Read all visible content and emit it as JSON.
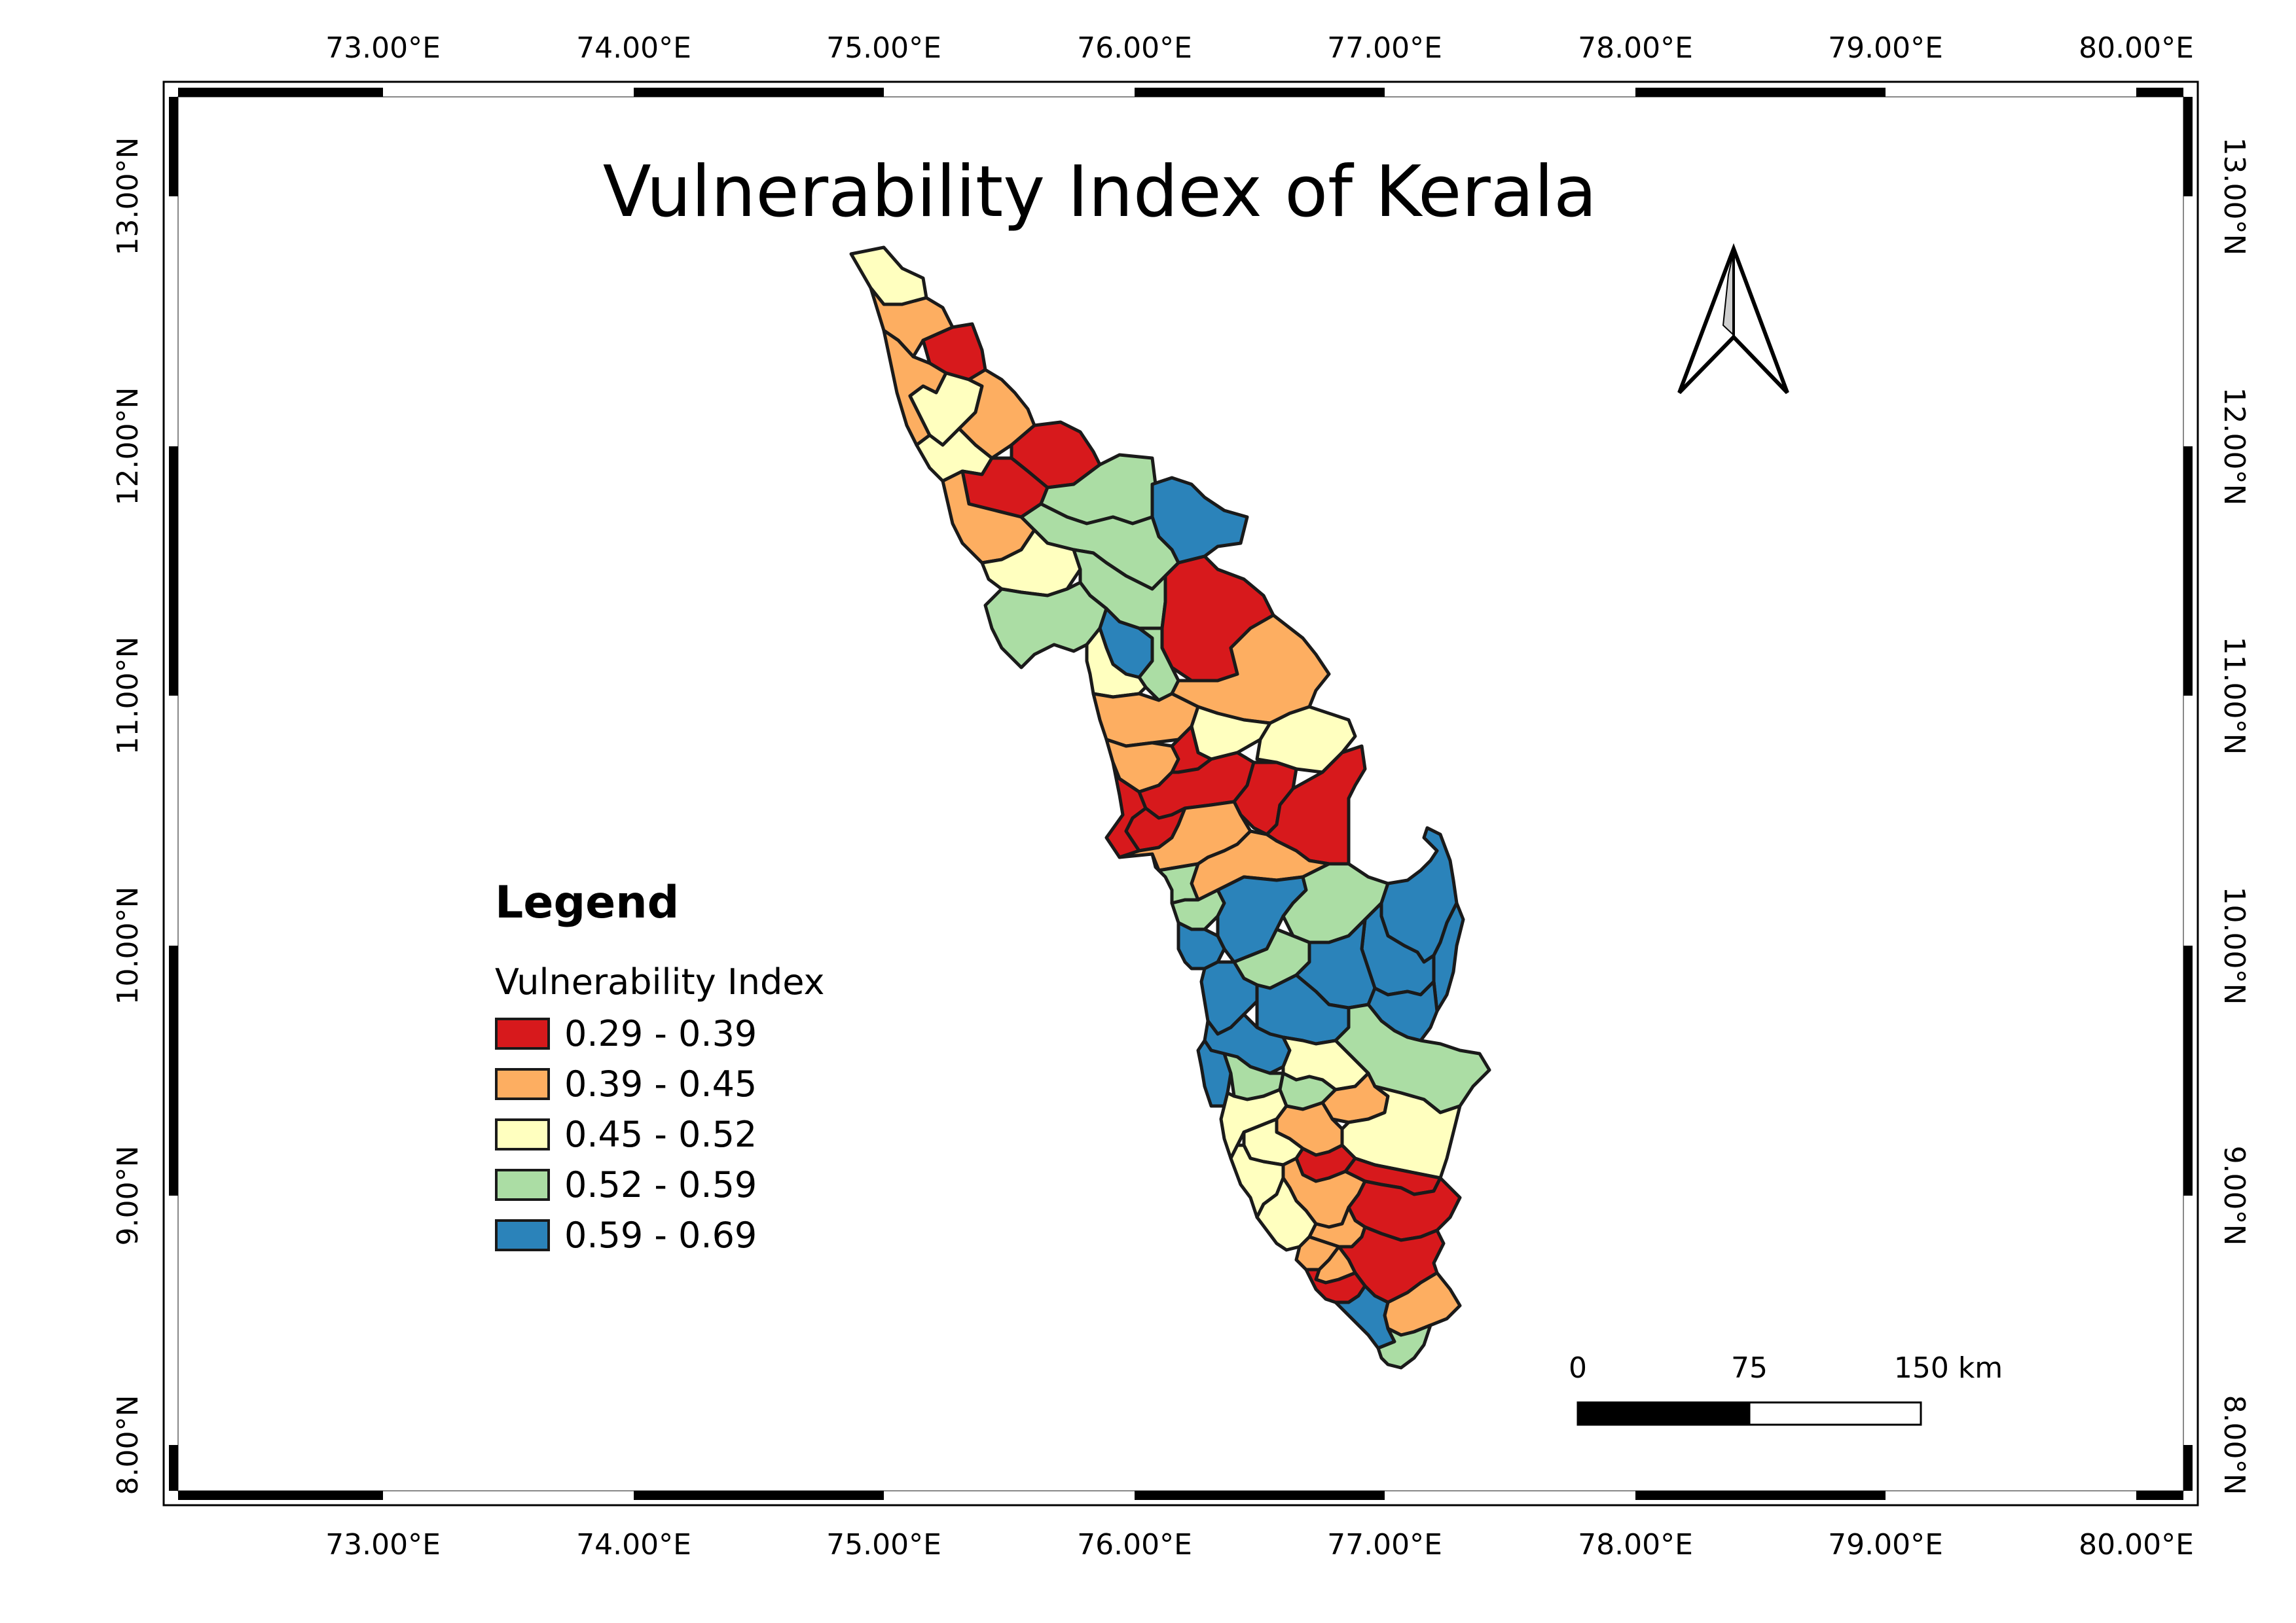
{
  "title": "Vulnerability Index of Kerala",
  "grid": {
    "lon_labels": [
      "73.00°E",
      "74.00°E",
      "75.00°E",
      "76.00°E",
      "77.00°E",
      "78.00°E",
      "79.00°E",
      "80.00°E"
    ],
    "lat_labels": [
      "13.00°N",
      "12.00°N",
      "11.00°N",
      "10.00°N",
      "9.00°N",
      "8.00°N"
    ]
  },
  "legend": {
    "heading": "Legend",
    "subtitle": "Vulnerability Index",
    "classes": [
      {
        "label": "0.29 - 0.39",
        "color": "#d7191c"
      },
      {
        "label": "0.39 - 0.45",
        "color": "#fdae61"
      },
      {
        "label": "0.45 - 0.52",
        "color": "#ffffbf"
      },
      {
        "label": "0.52 - 0.59",
        "color": "#abdda4"
      },
      {
        "label": "0.59 - 0.69",
        "color": "#2b83ba"
      }
    ]
  },
  "scale_bar": {
    "labels": [
      "0",
      "75",
      "150 km"
    ]
  },
  "north_arrow": {
    "icon": "north-arrow-icon"
  }
}
